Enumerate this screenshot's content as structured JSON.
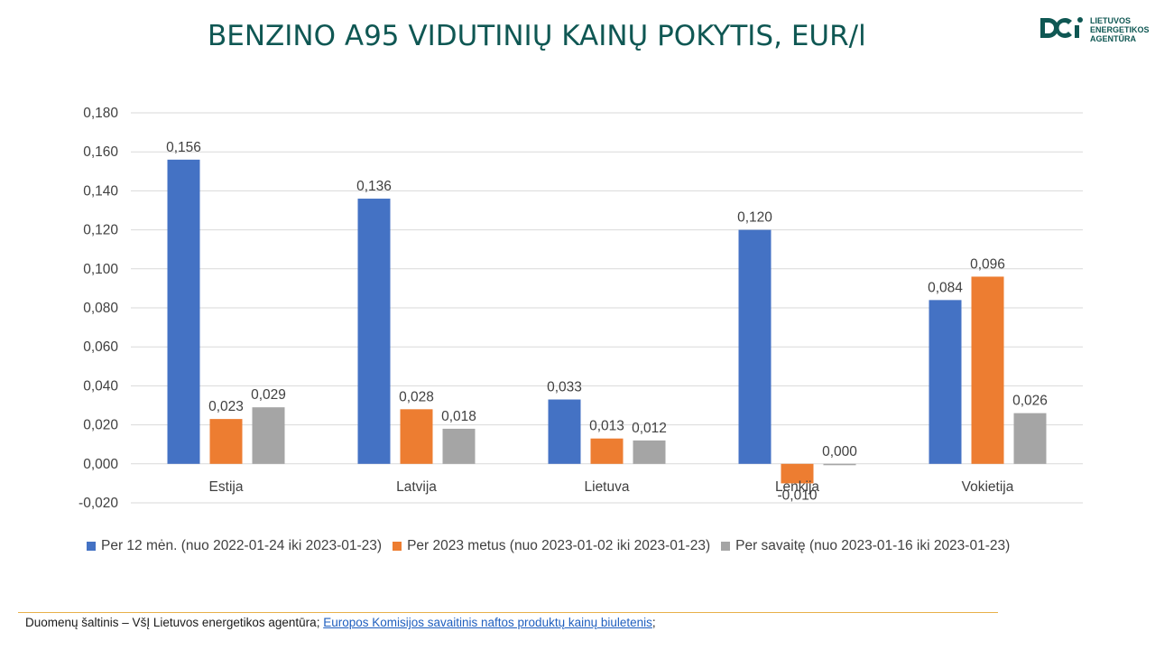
{
  "header": {
    "title": "BENZINO A95 VIDUTINIŲ KAINŲ POKYTIS, EUR/l",
    "logo_lines": [
      "LIETUVOS",
      "ENERGETIKOS",
      "AGENTŪRA"
    ]
  },
  "colors": {
    "title": "#0f5753",
    "series_blue": "#4472c4",
    "series_orange": "#ed7d31",
    "series_gray": "#a5a5a5",
    "grid": "#d9d9d9",
    "axis_text": "#404040",
    "source_rule": "#e8b04a",
    "link": "#1f5fbf"
  },
  "chart_data": {
    "type": "bar",
    "title": "BENZINO A95 VIDUTINIŲ KAINŲ POKYTIS, EUR/l",
    "categories": [
      "Estija",
      "Latvija",
      "Lietuva",
      "Lenkija",
      "Vokietija"
    ],
    "series": [
      {
        "name": "Per 12 mėn. (nuo 2022-01-24 iki 2023-01-23)",
        "values": [
          0.156,
          0.136,
          0.033,
          0.12,
          0.084
        ],
        "labels": [
          "0,156",
          "0,136",
          "0,033",
          "0,120",
          "0,084"
        ]
      },
      {
        "name": "Per 2023 metus (nuo 2023-01-02 iki 2023-01-23)",
        "values": [
          0.023,
          0.028,
          0.013,
          -0.01,
          0.096
        ],
        "labels": [
          "0,023",
          "0,028",
          "0,013",
          "-0,010",
          "0,096"
        ]
      },
      {
        "name": "Per savaitę (nuo 2023-01-16 iki 2023-01-23)",
        "values": [
          0.029,
          0.018,
          0.012,
          0.0,
          0.026
        ],
        "labels": [
          "0,029",
          "0,018",
          "0,012",
          "0,000",
          "0,026"
        ]
      }
    ],
    "y_ticks": [
      "-0,020",
      "0,000",
      "0,020",
      "0,040",
      "0,060",
      "0,080",
      "0,100",
      "0,120",
      "0,140",
      "0,160",
      "0,180"
    ],
    "ylim": [
      -0.02,
      0.18
    ],
    "grid": true,
    "legend_position": "bottom"
  },
  "footer": {
    "source_prefix": "Duomenų šaltinis – VšĮ Lietuvos energetikos agentūra; ",
    "source_link": "Europos Komisijos savaitinis naftos produktų kainų biuletenis",
    "source_suffix": ";"
  }
}
